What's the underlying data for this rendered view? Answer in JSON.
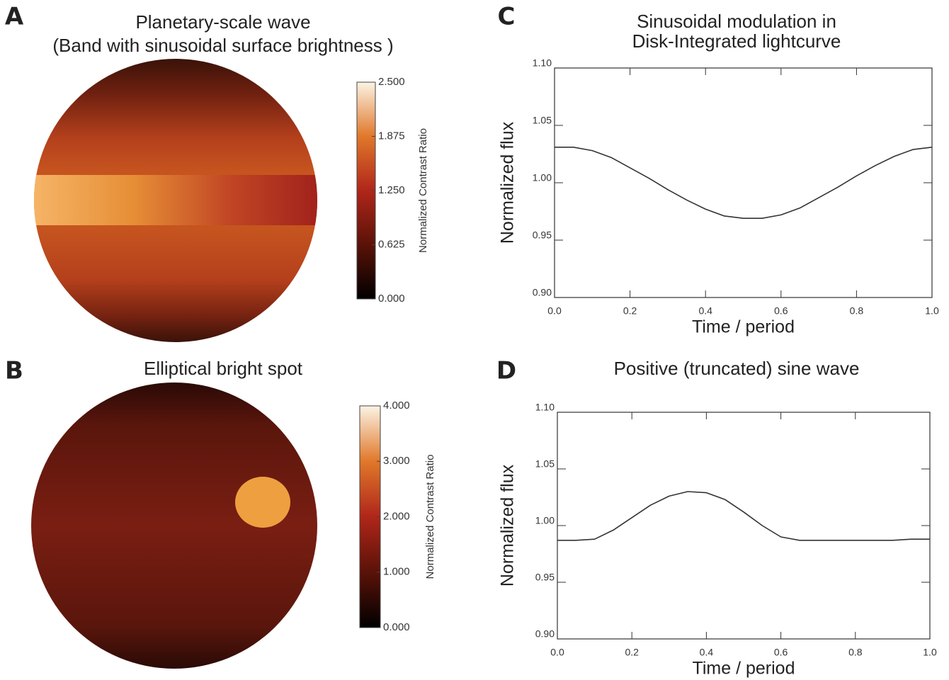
{
  "chart_data": [
    {
      "type": "disk",
      "panel": "A",
      "title": [
        "Planetary-scale wave",
        "(Band with sinusoidal surface brightness )"
      ],
      "colorbar_label": "Normalized Contrast Ratio",
      "clim": [
        0,
        2.5
      ],
      "cticks": [
        {
          "value": 0,
          "label": "0.000"
        },
        {
          "value": 0.625,
          "label": "0.625"
        },
        {
          "value": 1.25,
          "label": "1.250"
        },
        {
          "value": 1.875,
          "label": "1.875"
        },
        {
          "value": 2.5,
          "label": "2.500"
        }
      ]
    },
    {
      "type": "disk",
      "panel": "B",
      "title": [
        "Elliptical bright spot"
      ],
      "colorbar_label": "Normalized Contrast Ratio",
      "clim": [
        0,
        4
      ],
      "cticks": [
        {
          "value": 0,
          "label": "0.000"
        },
        {
          "value": 1,
          "label": "1.000"
        },
        {
          "value": 2,
          "label": "2.000"
        },
        {
          "value": 3,
          "label": "3.000"
        },
        {
          "value": 4,
          "label": "4.000"
        }
      ]
    },
    {
      "type": "line",
      "panel": "C",
      "title": [
        "Sinusoidal modulation in",
        "Disk-Integrated lightcurve"
      ],
      "xlabel": "Time / period",
      "ylabel": "Normalized flux",
      "color": "#333333",
      "xlim": [
        0,
        1
      ],
      "ylim": [
        0.9,
        1.1
      ],
      "xticks": [
        {
          "value": 0,
          "label": "0.0"
        },
        0.2,
        0.4,
        0.6,
        0.8,
        {
          "value": 1,
          "label": "1.0"
        }
      ],
      "yticks": [
        {
          "value": 0.9,
          "label": "0.90"
        },
        0.95,
        {
          "value": 1,
          "label": "1.00"
        },
        1.05,
        {
          "value": 1.1,
          "label": "1.10"
        }
      ],
      "x": [
        0,
        0.05,
        0.1,
        0.15,
        0.2,
        0.25,
        0.3,
        0.35,
        0.4,
        0.45,
        0.5,
        0.55,
        0.6,
        0.65,
        0.7,
        0.75,
        0.8,
        0.85,
        0.9,
        0.95,
        1
      ],
      "values": [
        1.031,
        1.031,
        1.028,
        1.022,
        1.013,
        1.004,
        0.994,
        0.985,
        0.977,
        0.971,
        0.969,
        0.969,
        0.972,
        0.978,
        0.987,
        0.996,
        1.006,
        1.015,
        1.023,
        1.029,
        1.031
      ]
    },
    {
      "type": "line",
      "panel": "D",
      "title": [
        "Positive (truncated) sine wave"
      ],
      "xlabel": "Time / period",
      "ylabel": "Normalized flux",
      "color": "#333333",
      "xlim": [
        0,
        1
      ],
      "ylim": [
        0.9,
        1.1
      ],
      "xticks": [
        {
          "value": 0,
          "label": "0.0"
        },
        0.2,
        0.4,
        0.6,
        0.8,
        {
          "value": 1,
          "label": "1.0"
        }
      ],
      "yticks": [
        {
          "value": 0.9,
          "label": "0.90"
        },
        0.95,
        {
          "value": 1,
          "label": "1.00"
        },
        1.05,
        {
          "value": 1.1,
          "label": "1.10"
        }
      ],
      "x": [
        0,
        0.05,
        0.1,
        0.15,
        0.2,
        0.25,
        0.3,
        0.35,
        0.4,
        0.45,
        0.5,
        0.55,
        0.6,
        0.65,
        0.7,
        0.75,
        0.8,
        0.85,
        0.9,
        0.95,
        1
      ],
      "values": [
        0.987,
        0.987,
        0.988,
        0.996,
        1.007,
        1.018,
        1.026,
        1.03,
        1.029,
        1.023,
        1.012,
        1.0,
        0.99,
        0.987,
        0.987,
        0.987,
        0.987,
        0.987,
        0.987,
        0.988,
        0.988
      ]
    }
  ]
}
